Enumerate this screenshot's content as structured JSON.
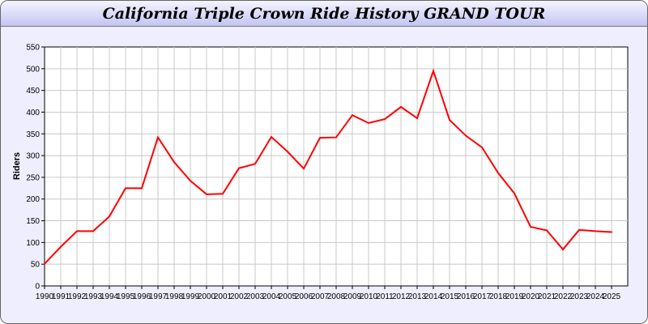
{
  "chart_data": {
    "type": "line",
    "title": "California Triple Crown Ride History GRAND TOUR",
    "xlabel": "",
    "ylabel": "Riders",
    "ylim": [
      0,
      550
    ],
    "yticks": [
      0,
      50,
      100,
      150,
      200,
      250,
      300,
      350,
      400,
      450,
      500,
      550
    ],
    "grid": true,
    "line_color": "#ff0000",
    "categories": [
      "1990",
      "1991",
      "1992",
      "1993",
      "1994",
      "1995",
      "1996",
      "1997",
      "1998",
      "1999",
      "2000",
      "2001",
      "2002",
      "2003",
      "2004",
      "2005",
      "2006",
      "2007",
      "2008",
      "2009",
      "2010",
      "2011",
      "2012",
      "2013",
      "2014",
      "2015",
      "2016",
      "2017",
      "2018",
      "2019",
      "2020",
      "2021",
      "2022",
      "2023",
      "2024",
      "2025"
    ],
    "values": [
      51,
      90,
      126,
      126,
      160,
      225,
      225,
      342,
      285,
      242,
      211,
      212,
      271,
      281,
      343,
      309,
      270,
      341,
      342,
      393,
      375,
      384,
      412,
      386,
      495,
      382,
      346,
      319,
      260,
      213,
      136,
      128,
      84,
      129,
      126,
      124
    ]
  }
}
